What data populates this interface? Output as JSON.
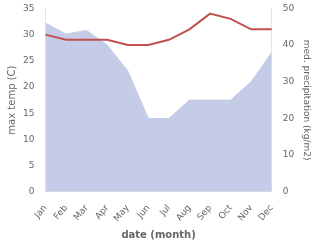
{
  "chart_data": {
    "type": "line",
    "xlabel": "date (month)",
    "ylabel": "max temp (C)",
    "y2label": "med. precipitation (kg/m2)",
    "categories": [
      "Jan",
      "Feb",
      "Mar",
      "Apr",
      "May",
      "Jun",
      "Jul",
      "Aug",
      "Sep",
      "Oct",
      "Nov",
      "Dec"
    ],
    "series": [
      {
        "type": "area",
        "axis": "y2",
        "color": "#c5cce8",
        "values": [
          46,
          43,
          44,
          40,
          33,
          20,
          20,
          25,
          25,
          25,
          30,
          38
        ]
      },
      {
        "type": "line",
        "color": "#c0504d",
        "values": [
          30,
          29,
          29,
          29,
          28,
          28,
          29,
          31,
          34,
          33,
          31,
          31
        ]
      }
    ],
    "ylim": [
      0,
      35
    ],
    "yticks": [
      0,
      5,
      10,
      15,
      20,
      25,
      30,
      35
    ],
    "y2lim": [
      0,
      50
    ],
    "y2ticks": [
      0,
      10,
      20,
      30,
      40,
      50
    ],
    "grid": false
  }
}
